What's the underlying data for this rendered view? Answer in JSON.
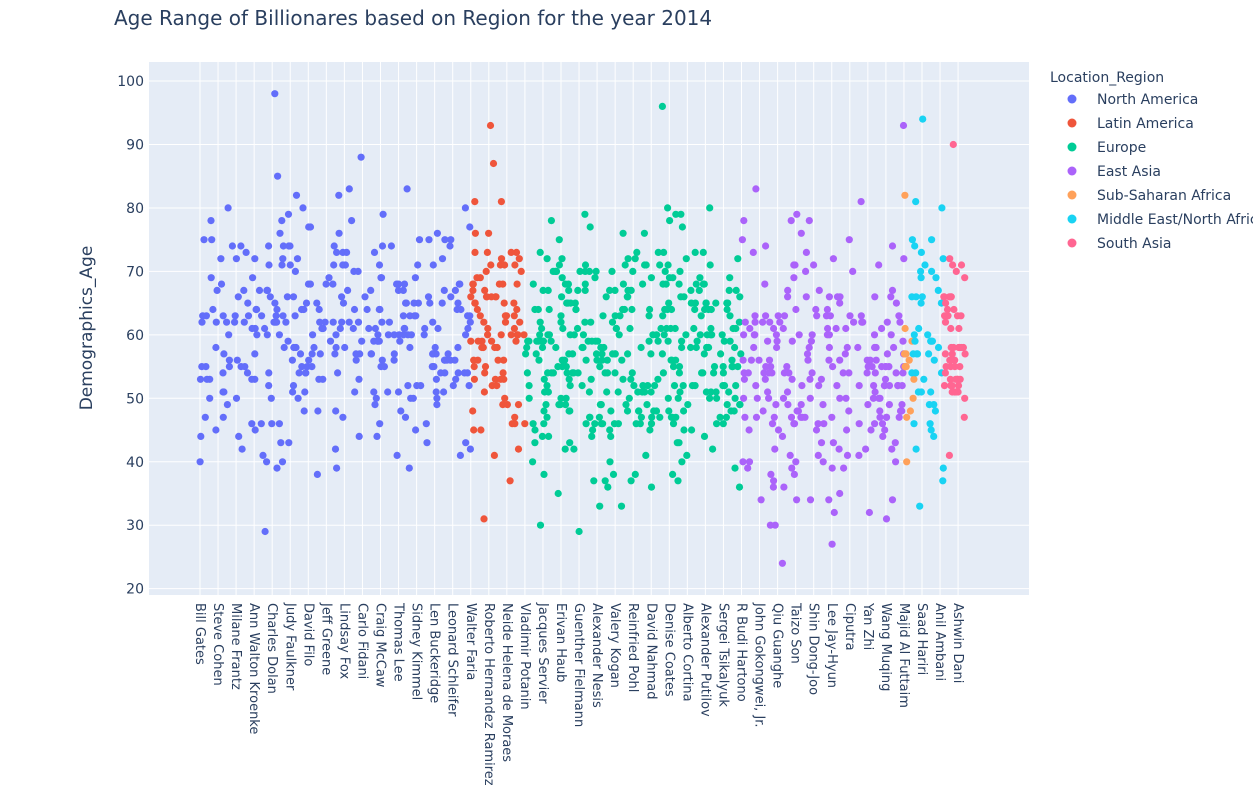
{
  "chart_data": {
    "type": "scatter",
    "title": "Age Range of Billionares based on Region for the year 2014",
    "ylabel": "Demographics_Age",
    "xlabel": "",
    "ylim": [
      19,
      103
    ],
    "yticks": [
      20,
      30,
      40,
      50,
      60,
      70,
      80,
      90,
      100
    ],
    "grid": true,
    "legend_title": "Location_Region",
    "legend_position": "top-right",
    "x_tick_labels": [
      "Bill Gates",
      "Steve Cohen",
      "Milane Frantz",
      "Ann Walton Kroenke",
      "Charles Dolan",
      "Judy Faulkner",
      "David Filo",
      "Jeff Greene",
      "Lindsay Fox",
      "Carlo Fidani",
      "Craig McCaw",
      "Thomas Lee",
      "Sidney Kimmel",
      "Len Buckeridge",
      "Leonard Schleifer",
      "Walter Faria",
      "Roberto Hernandez Ramirez",
      "Neide Helena de Moraes",
      "Vladimir Potanin",
      "Jacques Servier",
      "Erivan Haub",
      "Guenther Fielmann",
      "Alexander Nesis",
      "Valery Kogan",
      "Reinfried Pohl",
      "David Nahmad",
      "Denise Coates",
      "Alberto Cortina",
      "Alexander Putilov",
      "Sergei Tsikalyuk",
      "R Budi Hartono",
      "John Gokongwei, Jr.",
      "Qiu Guanghe",
      "Taizo Son",
      "Shin Dong-Joo",
      "Lee Jay-Hyun",
      "Ciputra",
      "Yan Zhi",
      "Wang Muqing",
      "Majid Al Futtaim",
      "Saad Hariri",
      "Anil Ambani",
      "Ashwin Dani"
    ],
    "series": [
      {
        "name": "North America",
        "color": "#636efa",
        "x_range": [
          0,
          15
        ],
        "n": 330,
        "age_range": [
          29,
          98
        ],
        "age_mode": 64,
        "seed": 11
      },
      {
        "name": "Latin America",
        "color": "#ef553b",
        "x_range": [
          15,
          18
        ],
        "n": 95,
        "age_range": [
          31,
          93
        ],
        "age_mode": 66,
        "seed": 23
      },
      {
        "name": "Europe",
        "color": "#00cc96",
        "x_range": [
          18,
          30
        ],
        "n": 380,
        "age_range": [
          29,
          96
        ],
        "age_mode": 60,
        "seed": 37
      },
      {
        "name": "East Asia",
        "color": "#ab63fa",
        "x_range": [
          30,
          39
        ],
        "n": 240,
        "age_range": [
          24,
          93
        ],
        "age_mode": 57,
        "seed": 41
      },
      {
        "name": "Sub-Saharan Africa",
        "color": "#ffa15a",
        "x_range": [
          39,
          39.6
        ],
        "n": 14,
        "age_range": [
          40,
          82
        ],
        "age_mode": 62,
        "seed": 53
      },
      {
        "name": "Middle East/North Africa",
        "color": "#19d3f3",
        "x_range": [
          39.4,
          41.2
        ],
        "n": 50,
        "age_range": [
          33,
          94
        ],
        "age_mode": 62,
        "seed": 67
      },
      {
        "name": "South Asia",
        "color": "#ff6692",
        "x_range": [
          41.2,
          42.4
        ],
        "n": 55,
        "age_range": [
          41,
          90
        ],
        "age_mode": 61,
        "seed": 79
      }
    ]
  },
  "legend": {
    "title": "Location_Region",
    "items": [
      {
        "label": "North America",
        "color": "#636efa"
      },
      {
        "label": "Latin America",
        "color": "#ef553b"
      },
      {
        "label": "Europe",
        "color": "#00cc96"
      },
      {
        "label": "East Asia",
        "color": "#ab63fa"
      },
      {
        "label": "Sub-Saharan Africa",
        "color": "#ffa15a"
      },
      {
        "label": "Middle East/North Africa",
        "color": "#19d3f3"
      },
      {
        "label": "South Asia",
        "color": "#ff6692"
      }
    ]
  }
}
